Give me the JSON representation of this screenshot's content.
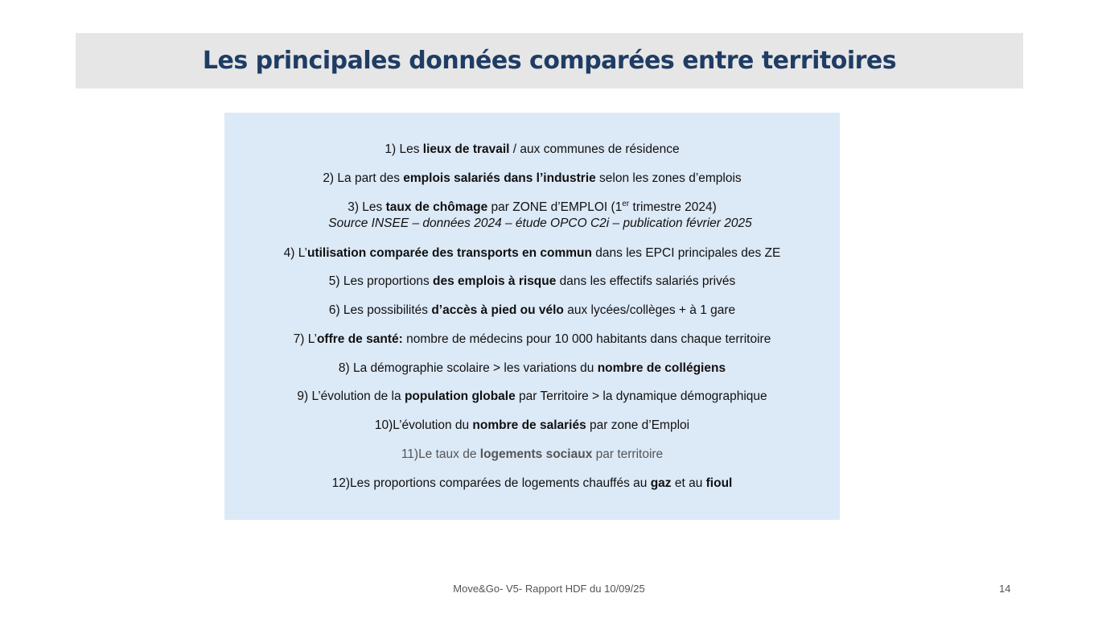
{
  "title": "Les principales données comparées entre territoires",
  "items": [
    {
      "segments": [
        {
          "t": "1)  Les "
        },
        {
          "t": "lieux de travail",
          "b": true
        },
        {
          "t": " / aux communes de résidence"
        }
      ]
    },
    {
      "segments": [
        {
          "t": "2)  La part des "
        },
        {
          "t": "emplois salariés dans l’industrie",
          "b": true
        },
        {
          "t": " selon les zones d’emplois"
        }
      ]
    },
    {
      "segments": [
        {
          "t": "3)  Les "
        },
        {
          "t": "taux de chômage",
          "b": true
        },
        {
          "t": " par ZONE d’EMPLOI (1"
        },
        {
          "t": "er",
          "sup": true
        },
        {
          "t": " trimestre 2024)"
        }
      ],
      "source": "Source INSEE – données 2024 – étude OPCO C2i – publication février 2025"
    },
    {
      "segments": [
        {
          "t": "4)  L’"
        },
        {
          "t": "utilisation comparée des transports en commun",
          "b": true
        },
        {
          "t": " dans les EPCI principales des ZE"
        }
      ]
    },
    {
      "segments": [
        {
          "t": "5)  Les proportions "
        },
        {
          "t": "des emplois à risque",
          "b": true
        },
        {
          "t": " dans les effectifs salariés privés"
        }
      ]
    },
    {
      "segments": [
        {
          "t": "6)  Les possibilités "
        },
        {
          "t": "d’accès à pied ou vélo",
          "b": true
        },
        {
          "t": " aux lycées/collèges + à 1 gare"
        }
      ]
    },
    {
      "segments": [
        {
          "t": "7)  L’"
        },
        {
          "t": "offre de santé:",
          "b": true
        },
        {
          "t": " nombre de médecins  pour 10 000 habitants dans chaque territoire"
        }
      ]
    },
    {
      "segments": [
        {
          "t": "8)  La démographie scolaire > les variations du "
        },
        {
          "t": "nombre de collégiens",
          "b": true
        }
      ]
    },
    {
      "segments": [
        {
          "t": "9)  L’évolution de la "
        },
        {
          "t": "population globale",
          "b": true
        },
        {
          "t": " par Territoire > la dynamique démographique"
        }
      ]
    },
    {
      "segments": [
        {
          "t": "10)L’évolution du "
        },
        {
          "t": "nombre de salariés",
          "b": true
        },
        {
          "t": " par zone d’Emploi"
        }
      ]
    },
    {
      "segments": [
        {
          "t": "11)Le taux de "
        },
        {
          "t": "logements sociaux",
          "b": true
        },
        {
          "t": " par territoire"
        }
      ],
      "muted": true
    },
    {
      "segments": [
        {
          "t": "12)Les proportions comparées de logements chauffés au "
        },
        {
          "t": "gaz",
          "b": true
        },
        {
          "t": " et au "
        },
        {
          "t": "fioul",
          "b": true
        }
      ]
    }
  ],
  "footer": "Move&Go- V5- Rapport HDF du 10/09/25",
  "page_number": "14",
  "colors": {
    "title": "#1f3c64",
    "title_bar": "#e6e6e6",
    "box": "#dce9f7",
    "muted_text": "#555555"
  }
}
